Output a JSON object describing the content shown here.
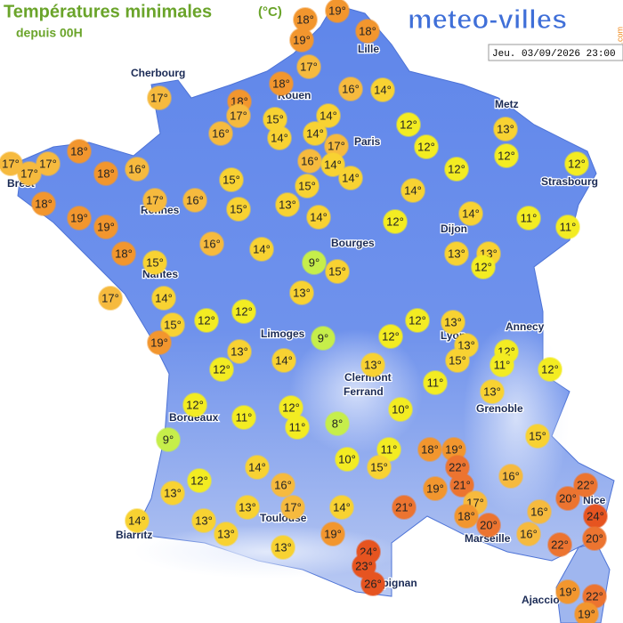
{
  "header": {
    "title": "Températures minimales",
    "unit": "(°C)",
    "subtitle": "depuis 00H",
    "logo": "meteo-villes",
    "logo_suffix": ".com",
    "datetime": "Jeu. 03/09/2026 23:00"
  },
  "cities": [
    "Lille",
    "Cherbourg",
    "Rouen",
    "Paris",
    "Metz",
    "Strasbourg",
    "Brest",
    "Rennes",
    "Dijon",
    "Bourges",
    "Nantes",
    "Annecy",
    "Lyon",
    "Limoges",
    "Clermont",
    "Ferrand",
    "Grenoble",
    "Bordeaux",
    "Nice",
    "Toulouse",
    "Biarritz",
    "Marseille",
    "Perpignan",
    "Ajaccio"
  ],
  "temperatures": [
    "18°",
    "19°",
    "19°",
    "18°",
    "17°",
    "17°",
    "18°",
    "18°",
    "17°",
    "15°",
    "16°",
    "14°",
    "14°",
    "16°",
    "14°",
    "14°",
    "17°",
    "12°",
    "13°",
    "12°",
    "12°",
    "17°",
    "17°",
    "17°",
    "18°",
    "18°",
    "16°",
    "16°",
    "14°",
    "14°",
    "12°",
    "12°",
    "18°",
    "17°",
    "16°",
    "15°",
    "15°",
    "15°",
    "13°",
    "14°",
    "19°",
    "19°",
    "14°",
    "12°",
    "14°",
    "11°",
    "11°",
    "16°",
    "14°",
    "18°",
    "15°",
    "9°",
    "15°",
    "13°",
    "13°",
    "12°",
    "17°",
    "14°",
    "13°",
    "12°",
    "12°",
    "15°",
    "12°",
    "13°",
    "19°",
    "9°",
    "12°",
    "13°",
    "13°",
    "14°",
    "15°",
    "12°",
    "11°",
    "12°",
    "12°",
    "13°",
    "11°",
    "13°",
    "12°",
    "12°",
    "11°",
    "11°",
    "10°",
    "8°",
    "9°",
    "11°",
    "18°",
    "19°",
    "10°",
    "15°",
    "22°",
    "15°",
    "16°",
    "14°",
    "12°",
    "16°",
    "21°",
    "19°",
    "22°",
    "13°",
    "20°",
    "13°",
    "17°",
    "21°",
    "14°",
    "17°",
    "18°",
    "24°",
    "16°",
    "14°",
    "13°",
    "20°",
    "19°",
    "20°",
    "13°",
    "16°",
    "24°",
    "22°",
    "13°",
    "23°",
    "26°",
    "19°",
    "22°",
    "19°"
  ]
}
